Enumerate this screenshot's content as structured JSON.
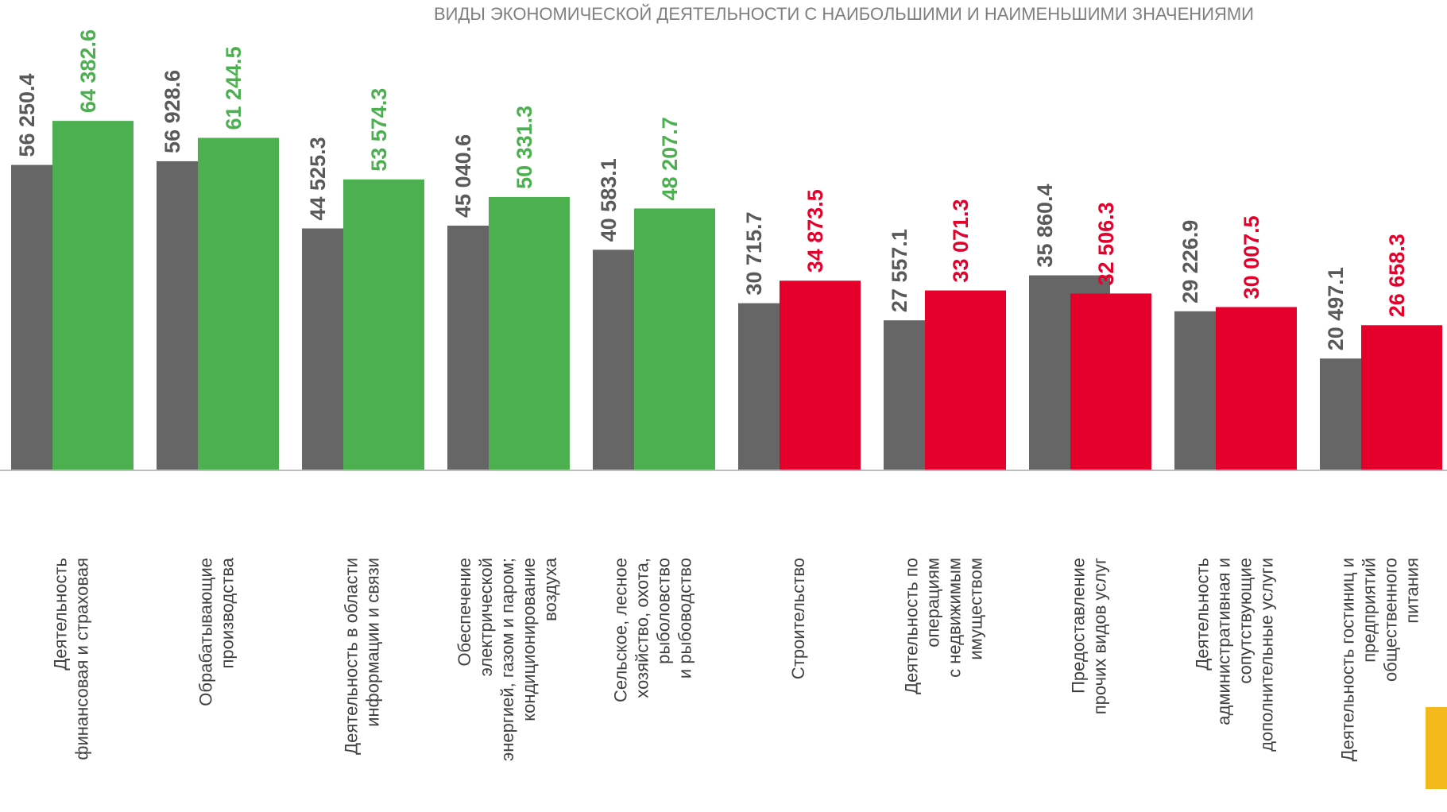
{
  "chart_data": {
    "type": "bar",
    "title": "ВИДЫ ЭКОНОМИЧЕСКОЙ ДЕЯТЕЛЬНОСТИ С НАИБОЛЬШИМИ И НАИМЕНЬШИМИ ЗНАЧЕНИЯМИ",
    "categories": [
      [
        "Деятельность",
        "финансовая и страховая"
      ],
      [
        "Обрабатывающие",
        "производства"
      ],
      [
        "Деятельность в области",
        "информации и связи"
      ],
      [
        "Обеспечение",
        "электрической",
        "энергией, газом и паром;",
        "кондиционирование",
        "воздуха"
      ],
      [
        "Сельское, лесное",
        "хозяйство, охота,",
        "рыболовство",
        "и рыбоводство"
      ],
      [
        "Строительство"
      ],
      [
        "Деятельность по",
        "операциям",
        "с недвижимым",
        "имуществом"
      ],
      [
        "Предоставление",
        "прочих видов услуг"
      ],
      [
        "Деятельность",
        "административная и",
        "сопутствующие",
        "дополнительные услуги"
      ],
      [
        "Деятельность гостиниц  и",
        "предприятий",
        "общественного",
        "питания"
      ]
    ],
    "series": [
      {
        "color": "#666666",
        "values": [
          56250.4,
          56928.6,
          44525.3,
          45040.6,
          40583.1,
          30715.7,
          27557.1,
          35860.4,
          29226.9,
          20497.1
        ],
        "value_labels": [
          "56 250.4",
          "56 928.6",
          "44 525.3",
          "45 040.6",
          "40 583.1",
          "30 715.7",
          "27 557.1",
          "35 860.4",
          "29 226.9",
          "20 497.1"
        ]
      },
      {
        "colors": [
          "#4caf50",
          "#4caf50",
          "#4caf50",
          "#4caf50",
          "#4caf50",
          "#e4002b",
          "#e4002b",
          "#e4002b",
          "#e4002b",
          "#e4002b"
        ],
        "values": [
          64382.6,
          61244.5,
          53574.3,
          50331.3,
          48207.7,
          34873.5,
          33071.3,
          32506.3,
          30007.5,
          26658.3
        ],
        "value_labels": [
          "64 382.6",
          "61 244.5",
          "53 574.3",
          "50 331.3",
          "48 207.7",
          "34 873.5",
          "33 071.3",
          "32 506.3",
          "30 007.5",
          "26 658.3"
        ]
      }
    ],
    "ylim": [
      0,
      86700
    ]
  }
}
